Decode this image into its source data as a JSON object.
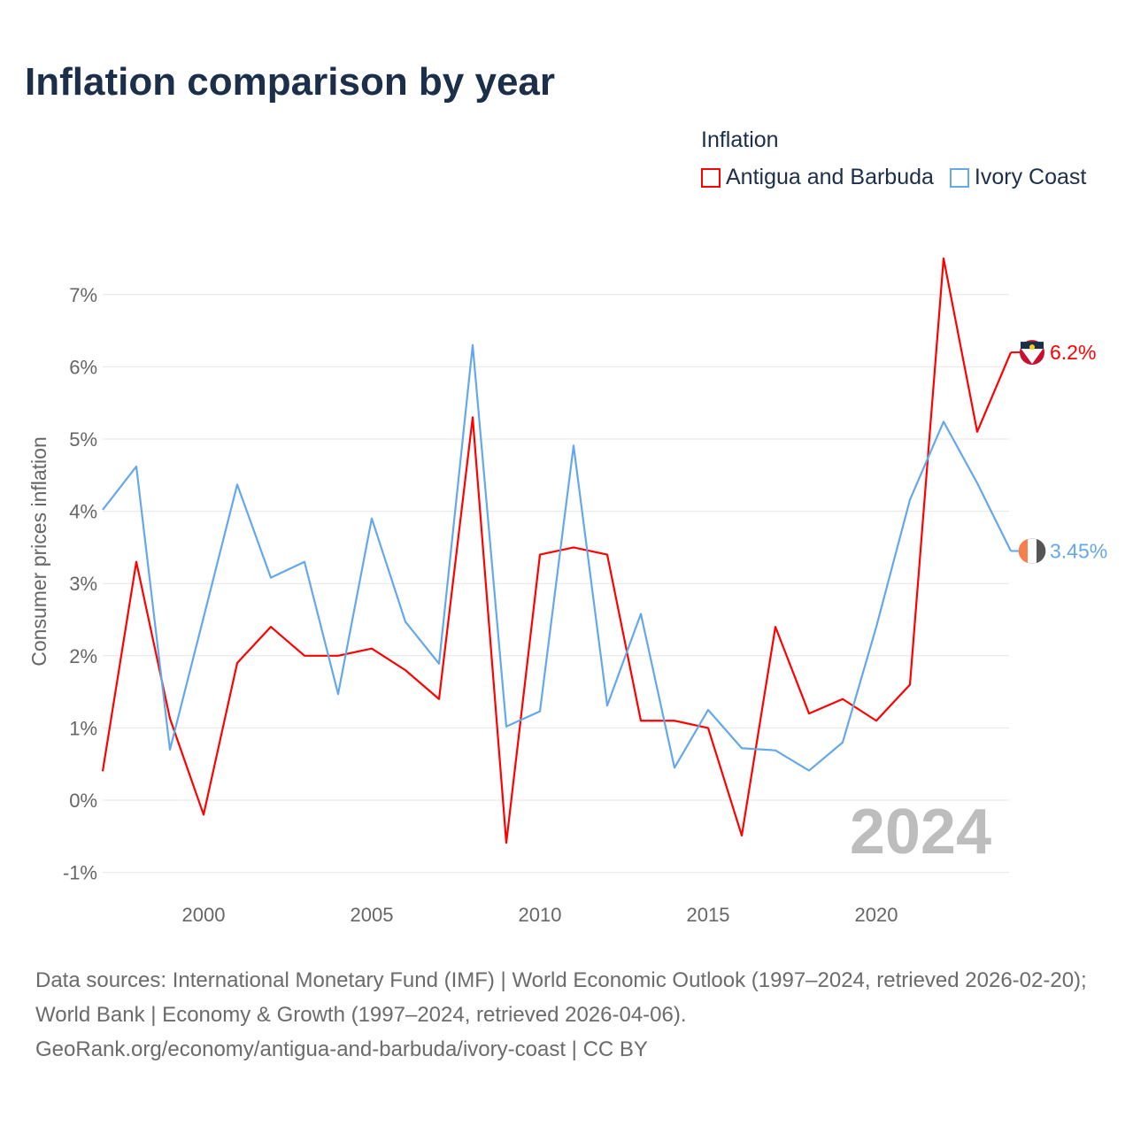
{
  "title": "Inflation comparison by year",
  "legend": {
    "title": "Inflation",
    "items": [
      {
        "label": "Antigua and Barbuda",
        "color": "#ff0000"
      },
      {
        "label": "Ivory Coast",
        "color": "#64a8ec"
      }
    ]
  },
  "chart_data": {
    "type": "line",
    "title": "Inflation comparison by year",
    "xlabel": "",
    "ylabel": "Consumer prices inflation",
    "x": [
      1997,
      1998,
      1999,
      2000,
      2001,
      2002,
      2003,
      2004,
      2005,
      2006,
      2007,
      2008,
      2009,
      2010,
      2011,
      2012,
      2013,
      2014,
      2015,
      2016,
      2017,
      2018,
      2019,
      2020,
      2021,
      2022,
      2023,
      2024
    ],
    "xlim": [
      1997,
      2024
    ],
    "ylim": [
      -1.3,
      7.6
    ],
    "xticks": [
      2000,
      2005,
      2010,
      2015,
      2020
    ],
    "xtick_labels": [
      "2000",
      "2005",
      "2010",
      "2015",
      "2020"
    ],
    "yticks": [
      -1,
      0,
      1,
      2,
      3,
      4,
      5,
      6,
      7
    ],
    "ytick_labels": [
      "-1%",
      "0%",
      "1%",
      "2%",
      "3%",
      "4%",
      "5%",
      "6%",
      "7%"
    ],
    "grid": true,
    "legend_position": "top-right",
    "year_watermark": "2024",
    "series": [
      {
        "name": "Antigua and Barbuda",
        "color": "#ff0000",
        "end_label": "6.2%",
        "values": [
          0.4,
          3.3,
          1.13,
          -0.2,
          1.9,
          2.4,
          2.0,
          2.0,
          2.1,
          1.8,
          1.4,
          5.3,
          -0.59,
          3.4,
          3.5,
          3.4,
          1.1,
          1.1,
          1.0,
          -0.49,
          2.4,
          1.2,
          1.4,
          1.1,
          1.6,
          7.5,
          5.1,
          6.2
        ]
      },
      {
        "name": "Ivory Coast",
        "color": "#64a8ec",
        "end_label": "3.45%",
        "values": [
          4.02,
          4.62,
          0.7,
          2.53,
          4.37,
          3.08,
          3.3,
          1.47,
          3.9,
          2.47,
          1.89,
          6.3,
          1.02,
          1.23,
          4.91,
          1.31,
          2.58,
          0.45,
          1.25,
          0.72,
          0.69,
          0.41,
          0.8,
          2.4,
          4.16,
          5.24,
          4.39,
          3.45
        ]
      }
    ]
  },
  "source": {
    "line1": "Data sources: International Monetary Fund (IMF) | World Economic Outlook (1997–2024, retrieved 2026-02-20); World Bank | Economy & Growth (1997–2024, retrieved 2026-04-06).",
    "line2": "GeoRank.org/economy/antigua-and-barbuda/ivory-coast | CC BY"
  }
}
